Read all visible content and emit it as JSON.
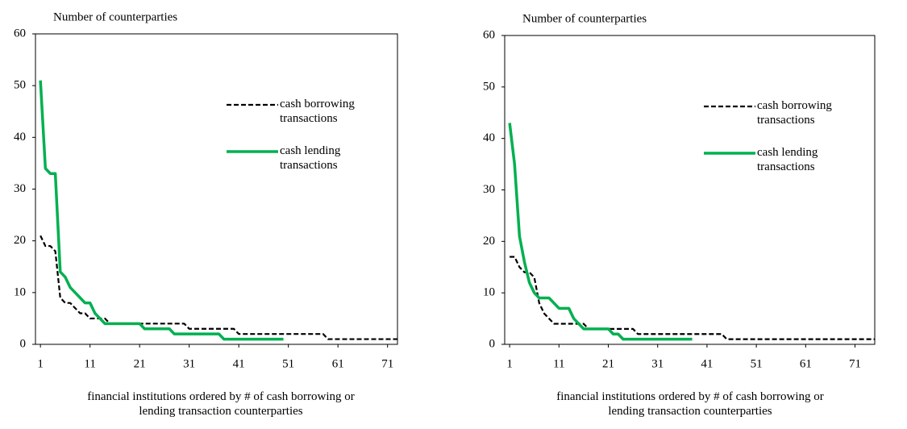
{
  "chart_data": [
    {
      "type": "line",
      "title": "Number of counterparties",
      "x_label": "financial institutions ordered by # of cash borrowing or lending transaction counterparties",
      "x": [
        1,
        2,
        3,
        4,
        5,
        6,
        7,
        8,
        9,
        10,
        11,
        12,
        13,
        14,
        15,
        16,
        17,
        18,
        19,
        20,
        21,
        22,
        23,
        24,
        25,
        26,
        27,
        28,
        29,
        30,
        31,
        32,
        33,
        34,
        35,
        36,
        37,
        38,
        39,
        40,
        41,
        42,
        43,
        44,
        45,
        46,
        47,
        48,
        49,
        50,
        51,
        52,
        53,
        54,
        55,
        56,
        57,
        58,
        59,
        60,
        61,
        62,
        63,
        64,
        65,
        66,
        67,
        68,
        69,
        70,
        71,
        72,
        73
      ],
      "series": [
        {
          "name": "cash borrowing transactions",
          "color": "#000000",
          "dash": true,
          "values": [
            21,
            19,
            19,
            18,
            9,
            8,
            8,
            7,
            6,
            6,
            5,
            5,
            5,
            5,
            4,
            4,
            4,
            4,
            4,
            4,
            4,
            4,
            4,
            4,
            4,
            4,
            4,
            4,
            4,
            4,
            3,
            3,
            3,
            3,
            3,
            3,
            3,
            3,
            3,
            3,
            2,
            2,
            2,
            2,
            2,
            2,
            2,
            2,
            2,
            2,
            2,
            2,
            2,
            2,
            2,
            2,
            2,
            2,
            1,
            1,
            1,
            1,
            1,
            1,
            1,
            1,
            1,
            1,
            1,
            1,
            1,
            1,
            1
          ]
        },
        {
          "name": "cash lending transactions",
          "color": "#00b050",
          "dash": false,
          "values": [
            51,
            34,
            33,
            33,
            14,
            13,
            11,
            10,
            9,
            8,
            8,
            6,
            5,
            4,
            4,
            4,
            4,
            4,
            4,
            4,
            4,
            3,
            3,
            3,
            3,
            3,
            3,
            2,
            2,
            2,
            2,
            2,
            2,
            2,
            2,
            2,
            2,
            1,
            1,
            1,
            1,
            1,
            1,
            1,
            1,
            1,
            1,
            1,
            1,
            1,
            null,
            null,
            null,
            null,
            null,
            null,
            null,
            null,
            null,
            null,
            null,
            null,
            null,
            null,
            null,
            null,
            null,
            null,
            null,
            null,
            null,
            null,
            null
          ]
        }
      ],
      "xlim": [
        0,
        73
      ],
      "xticks": [
        1,
        11,
        21,
        31,
        41,
        51,
        61,
        71
      ],
      "ylim": [
        0,
        60
      ],
      "yticks": [
        0,
        10,
        20,
        30,
        40,
        50,
        60
      ],
      "legend": "upper right"
    },
    {
      "type": "line",
      "title": "Number of counterparties",
      "x_label": "financial institutions ordered by # of cash borrowing or lending transaction counterparties",
      "x": [
        1,
        2,
        3,
        4,
        5,
        6,
        7,
        8,
        9,
        10,
        11,
        12,
        13,
        14,
        15,
        16,
        17,
        18,
        19,
        20,
        21,
        22,
        23,
        24,
        25,
        26,
        27,
        28,
        29,
        30,
        31,
        32,
        33,
        34,
        35,
        36,
        37,
        38,
        39,
        40,
        41,
        42,
        43,
        44,
        45,
        46,
        47,
        48,
        49,
        50,
        51,
        52,
        53,
        54,
        55,
        56,
        57,
        58,
        59,
        60,
        61,
        62,
        63,
        64,
        65,
        66,
        67,
        68,
        69,
        70,
        71,
        72,
        73,
        74,
        75
      ],
      "series": [
        {
          "name": "cash borrowing transactions",
          "color": "#000000",
          "dash": true,
          "values": [
            17,
            17,
            15,
            14,
            14,
            13,
            8,
            6,
            5,
            4,
            4,
            4,
            4,
            4,
            4,
            4,
            3,
            3,
            3,
            3,
            3,
            3,
            3,
            3,
            3,
            3,
            2,
            2,
            2,
            2,
            2,
            2,
            2,
            2,
            2,
            2,
            2,
            2,
            2,
            2,
            2,
            2,
            2,
            2,
            1,
            1,
            1,
            1,
            1,
            1,
            1,
            1,
            1,
            1,
            1,
            1,
            1,
            1,
            1,
            1,
            1,
            1,
            1,
            1,
            1,
            1,
            1,
            1,
            1,
            1,
            1,
            1,
            1,
            1,
            1
          ]
        },
        {
          "name": "cash lending transactions",
          "color": "#00b050",
          "dash": false,
          "values": [
            43,
            35,
            21,
            16,
            12,
            10,
            9,
            9,
            9,
            8,
            7,
            7,
            7,
            5,
            4,
            3,
            3,
            3,
            3,
            3,
            3,
            2,
            2,
            1,
            1,
            1,
            1,
            1,
            1,
            1,
            1,
            1,
            1,
            1,
            1,
            1,
            1,
            1,
            null,
            null,
            null,
            null,
            null,
            null,
            null,
            null,
            null,
            null,
            null,
            null,
            null,
            null,
            null,
            null,
            null,
            null,
            null,
            null,
            null,
            null,
            null,
            null,
            null,
            null,
            null,
            null,
            null,
            null,
            null,
            null,
            null,
            null,
            null,
            null,
            null
          ]
        }
      ],
      "xlim": [
        0,
        75
      ],
      "xticks": [
        1,
        11,
        21,
        31,
        41,
        51,
        61,
        71
      ],
      "ylim": [
        0,
        60
      ],
      "yticks": [
        0,
        10,
        20,
        30,
        40,
        50,
        60
      ],
      "legend": "upper right"
    }
  ]
}
